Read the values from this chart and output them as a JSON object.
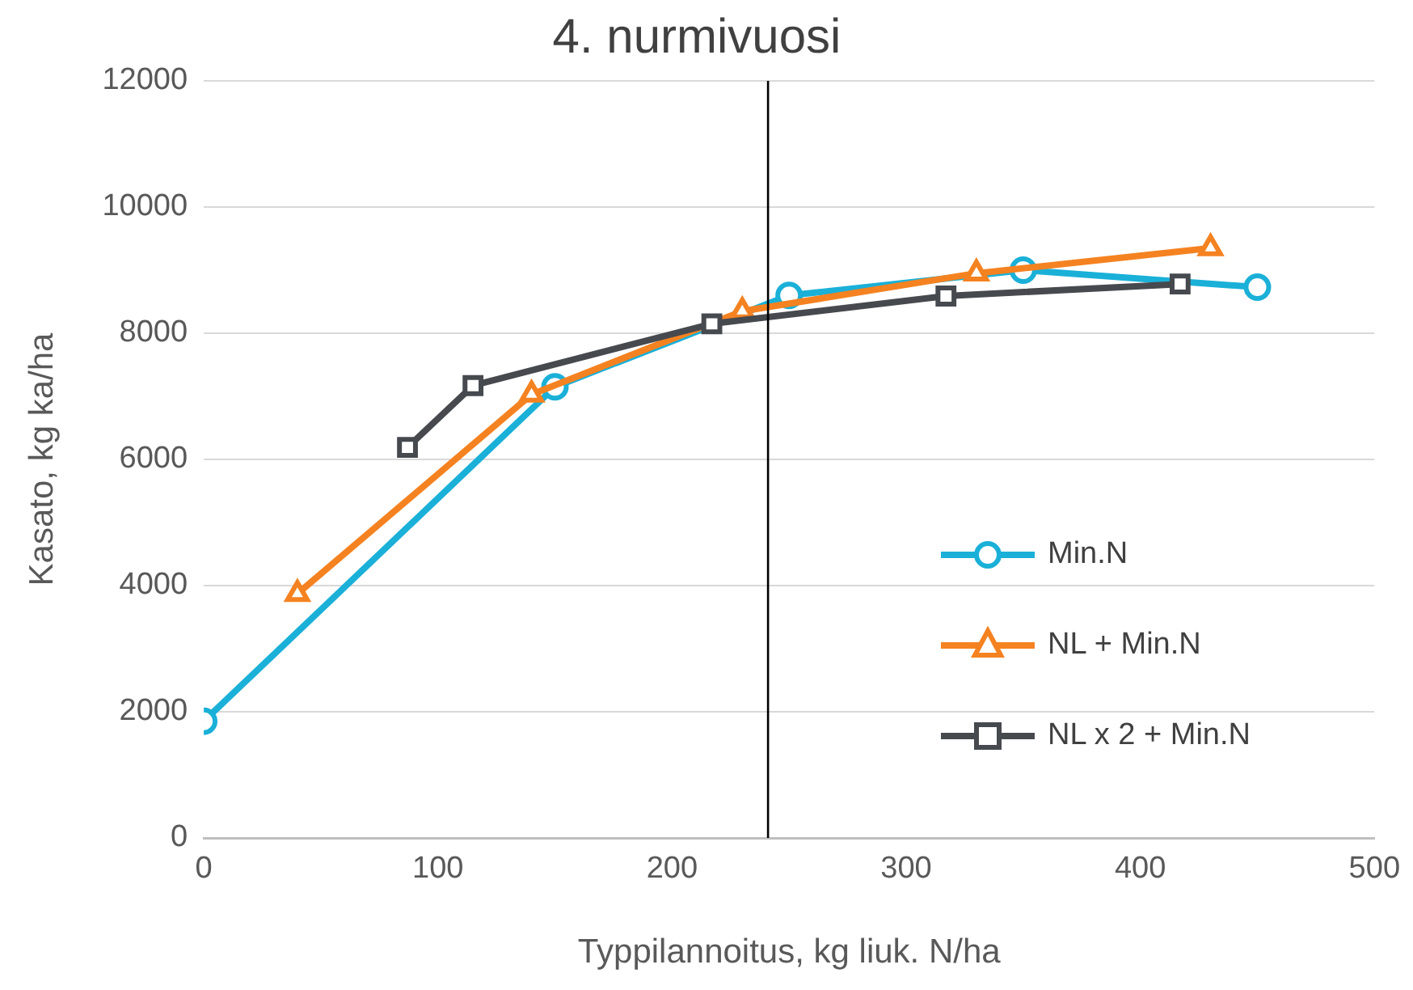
{
  "chart_data": {
    "type": "line",
    "title": "4. nurmivuosi",
    "xlabel": "Typpilannoitus, kg liuk. N/ha",
    "ylabel": "Kasato, kg ka/ha",
    "xlim": [
      0,
      500
    ],
    "xticks": [
      0,
      100,
      200,
      300,
      400,
      500
    ],
    "ylim": [
      0,
      12000
    ],
    "yticks": [
      0,
      2000,
      4000,
      6000,
      8000,
      10000,
      12000
    ],
    "grid": "y",
    "legend": "right",
    "series": [
      {
        "name": "Min.N",
        "color": "#1ab0d8",
        "marker": "circle",
        "x": [
          0,
          150,
          250,
          350,
          450
        ],
        "values": [
          1850,
          7150,
          8600,
          9000,
          8730
        ]
      },
      {
        "name": "NL + Min.N",
        "color": "#f58220",
        "marker": "triangle",
        "x": [
          40,
          140,
          230,
          330,
          430
        ],
        "values": [
          3870,
          7030,
          8350,
          8950,
          9350
        ]
      },
      {
        "name": "NL x 2 + Min.N",
        "color": "#464a4f",
        "marker": "square",
        "x": [
          87,
          115,
          217,
          317,
          417
        ],
        "values": [
          6190,
          7170,
          8150,
          8590,
          8780
        ]
      }
    ],
    "ref_lines": [
      {
        "axis": "x",
        "value": 241,
        "color": "#000000"
      }
    ]
  }
}
